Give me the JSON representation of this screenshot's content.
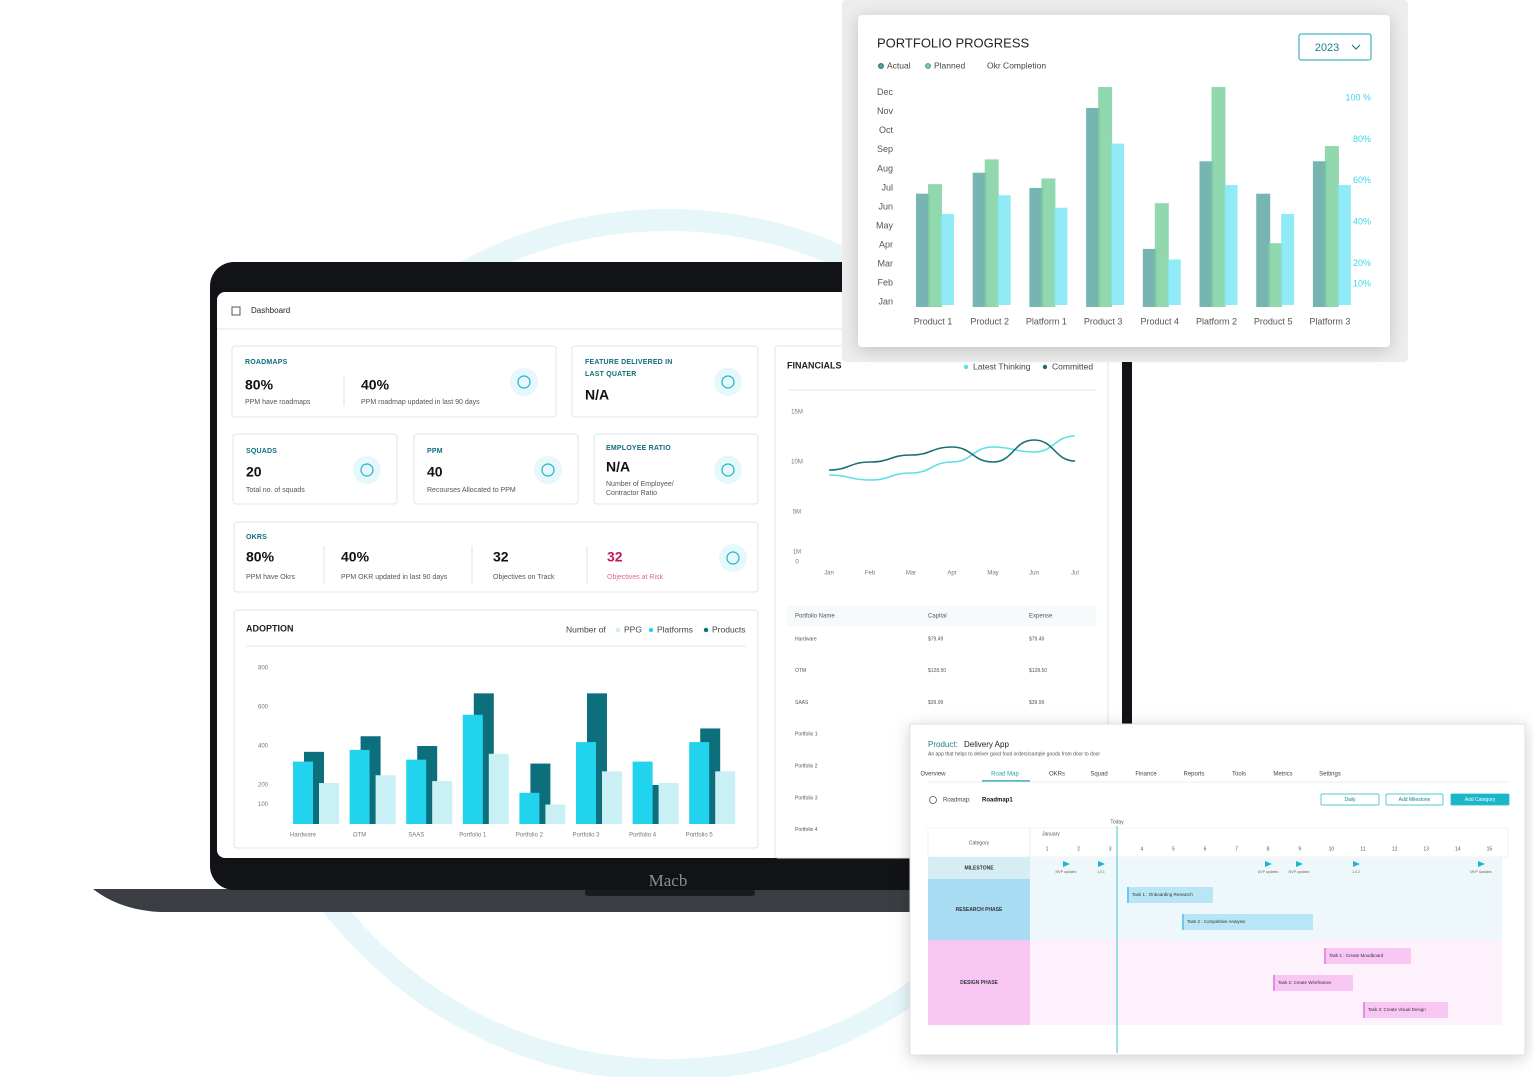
{
  "laptop_brand": "Macb",
  "dashboard": {
    "title": "Dashboard",
    "roadmaps": {
      "label": "ROADMAPS",
      "stats": [
        {
          "value": "80%",
          "caption": "PPM have roadmaps"
        },
        {
          "value": "40%",
          "caption": "PPM roadmap updated in last 90 days"
        }
      ]
    },
    "feature": {
      "label_lines": [
        "FEATURE DELIVERED IN",
        "LAST QUATER"
      ],
      "value": "N/A"
    },
    "squads": {
      "label": "SQUADS",
      "value": "20",
      "caption": "Total no.  of squads"
    },
    "ppm": {
      "label": "PPM",
      "value": "40",
      "caption": "Recourses Allocated to PPM"
    },
    "employee": {
      "label": "EMPLOYEE RATIO",
      "value": "N/A",
      "caption_lines": [
        "Number of Employee/",
        "Contractor Ratio"
      ]
    },
    "okrs": {
      "label": "OKRS",
      "stats": [
        {
          "value": "80%",
          "caption": "PPM have Okrs"
        },
        {
          "value": "40%",
          "caption": "PPM OKR updated in last 90 days"
        },
        {
          "value": "32",
          "caption": "Objectives on Track"
        },
        {
          "value": "32",
          "caption": "Objectives at Risk"
        }
      ]
    }
  },
  "chart_data": [
    {
      "type": "bar",
      "title": "PORTFOLIO PROGRESS",
      "year": "2023",
      "categories": [
        "Product 1",
        "Product 2",
        "Platform 1",
        "Product 3",
        "Product 4",
        "Platform 2",
        "Product 5",
        "Platform 3"
      ],
      "series": [
        {
          "name": "Actual",
          "color": "#5fa8a5",
          "values": [
            6.7,
            7.8,
            7.0,
            11.2,
            3.8,
            8.4,
            6.7,
            8.4
          ]
        },
        {
          "name": "Planned",
          "color": "#7fd1a0",
          "values": [
            7.2,
            8.5,
            7.5,
            12.3,
            6.2,
            12.3,
            4.1,
            9.2
          ]
        },
        {
          "name": "Okr Completion",
          "color": "#7ee8f5",
          "axis": "y2",
          "values": [
            44,
            53,
            47,
            78,
            22,
            58,
            44,
            58
          ]
        }
      ],
      "ylim": [
        0.75,
        12.3
      ],
      "yticks": [
        {
          "value": 1,
          "label": "Jan"
        },
        {
          "value": 2,
          "label": "Feb"
        },
        {
          "value": 3,
          "label": "Mar"
        },
        {
          "value": 4,
          "label": "Apr"
        },
        {
          "value": 5,
          "label": "May"
        },
        {
          "value": 6,
          "label": "Jun"
        },
        {
          "value": 7,
          "label": "Jul"
        },
        {
          "value": 8,
          "label": "Aug"
        },
        {
          "value": 9,
          "label": "Sep"
        },
        {
          "value": 10,
          "label": "Oct"
        },
        {
          "value": 11,
          "label": "Nov"
        },
        {
          "value": 12,
          "label": "Dec"
        }
      ],
      "y2lim": [
        0,
        100
      ],
      "y2ticks": [
        {
          "value": 10,
          "label": "10%"
        },
        {
          "value": 20,
          "label": "20%"
        },
        {
          "value": 40,
          "label": "40%"
        },
        {
          "value": 60,
          "label": "60%"
        },
        {
          "value": 80,
          "label": "80%"
        },
        {
          "value": 100,
          "label": "100 %"
        }
      ]
    },
    {
      "type": "bar",
      "title": "ADOPTION",
      "legend_title": "Number of",
      "categories": [
        "Hardware",
        "OTM",
        "SAAS",
        "Portfolio 1",
        "Portfolio 2",
        "Portfolio 3",
        "Portfolio 4",
        "Portfolio 5"
      ],
      "series": [
        {
          "name": "PPG",
          "color": "#c8f0f5",
          "values": [
            210,
            250,
            220,
            360,
            100,
            270,
            210,
            270
          ]
        },
        {
          "name": "Platforms",
          "color": "#22d3ee",
          "values": [
            320,
            380,
            330,
            560,
            160,
            420,
            320,
            420
          ]
        },
        {
          "name": "Products",
          "color": "#0e6f7c",
          "values": [
            370,
            450,
            400,
            670,
            310,
            670,
            200,
            490
          ]
        }
      ],
      "ylim": [
        0,
        800
      ],
      "yticks": [
        100,
        200,
        400,
        600,
        800
      ]
    },
    {
      "type": "line",
      "title": "FINANCIALS",
      "categories": [
        "Jan",
        "Feb",
        "Mar",
        "Apr",
        "May",
        "Jun",
        "Jul"
      ],
      "series": [
        {
          "name": "Latest Thinking",
          "color": "#5ce1e6",
          "values": [
            8.7,
            8.2,
            8.9,
            10.0,
            11.5,
            11.0,
            12.6
          ]
        },
        {
          "name": "Committed",
          "color": "#1a6f73",
          "values": [
            9.2,
            10.0,
            10.7,
            11.5,
            10.0,
            12.2,
            10.1
          ]
        }
      ],
      "ylim": [
        0,
        15
      ],
      "yticks": [
        0,
        {
          "value": 1,
          "label": "1M"
        },
        {
          "value": 5,
          "label": "5M"
        },
        {
          "value": 10,
          "label": "10M"
        },
        {
          "value": 15,
          "label": "15M"
        }
      ]
    }
  ],
  "financials_table": {
    "headers": [
      "Portfolio Name",
      "Capital",
      "Expense"
    ],
    "rows": [
      [
        "Hardware",
        "$79.49",
        "$79.49"
      ],
      [
        "OTM",
        "$128.50",
        "$128.50"
      ],
      [
        "SAAS",
        "$39.99",
        "$39.99"
      ],
      [
        "Portfolio 1"
      ],
      [
        "Portfolio 2"
      ],
      [
        "Portfolio 3"
      ],
      [
        "Portfolio 4"
      ]
    ]
  },
  "roadmap": {
    "product_label": "Product:",
    "product_name": "Delivery App",
    "description": "An app that helps to deliver good food orders/sample goods from door to door",
    "tabs": [
      "Overview",
      "Road Map",
      "OKRs",
      "Squad",
      "Finance",
      "Reports",
      "Tools",
      "Metrics",
      "Settings"
    ],
    "roadmap_label": "Roadmap:",
    "roadmap_name": "Roadmap1",
    "buttons": [
      "Daily",
      "Add Milestone",
      "Add Category"
    ],
    "today": "Today",
    "category_header": "Category",
    "month": "January",
    "days": [
      1,
      2,
      3,
      4,
      5,
      6,
      7,
      8,
      9,
      10,
      11,
      12,
      13,
      14,
      15
    ],
    "phases": [
      "MILESTONE",
      "RESEARCH PHASE",
      "DESIGN PHASE"
    ],
    "milestones": [
      "MVP updates",
      "1.0.1",
      "UVP updates",
      "MVP updates",
      "1.0.2",
      "MVP Updates"
    ],
    "tasks": [
      "Task 1 : Onboarding Research",
      "Task 2 : Competitive Analysis",
      "Task 1 : Create Moodboard",
      "Task 2: Create Wireframes",
      "Task 3: Create Visual Design"
    ]
  }
}
